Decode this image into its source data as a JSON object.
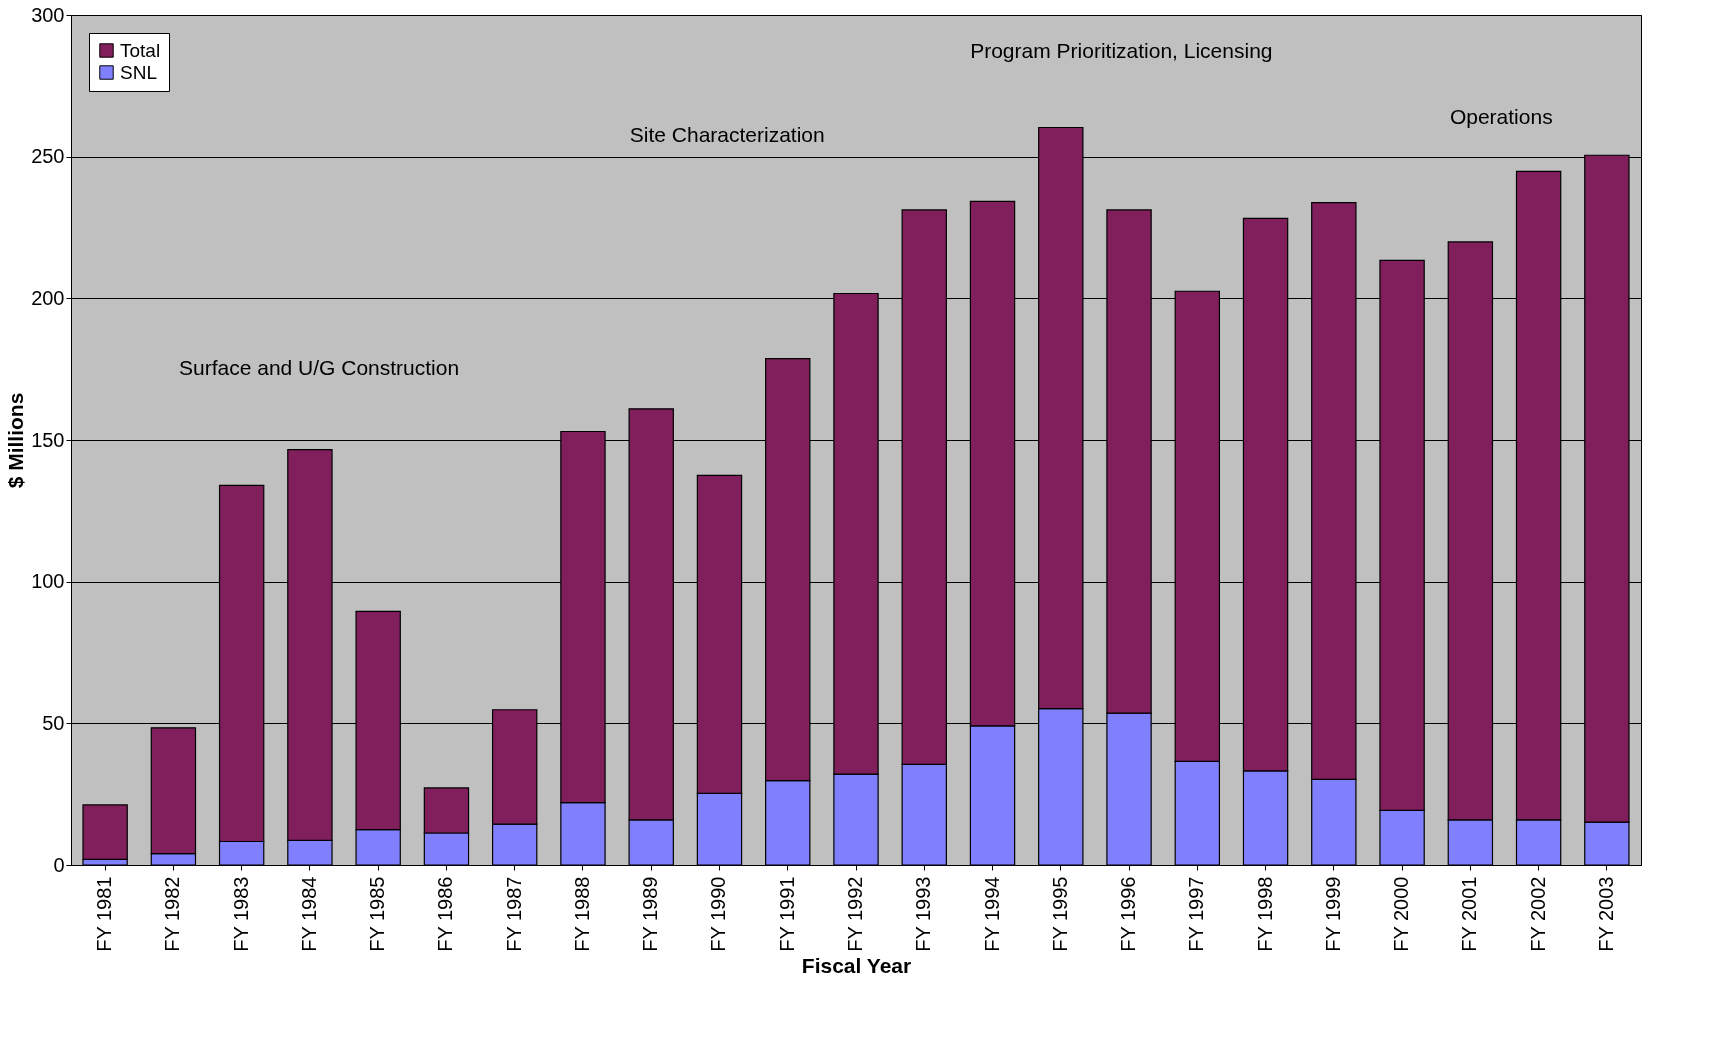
{
  "chart_data": {
    "type": "bar",
    "stacked": true,
    "xlabel": "Fiscal Year",
    "ylabel": "$ Millions",
    "categories": [
      "FY 1981",
      "FY 1982",
      "FY 1983",
      "FY 1984",
      "FY 1985",
      "FY 1986",
      "FY 1987",
      "FY 1988",
      "FY 1989",
      "FY 1990",
      "FY 1991",
      "FY 1992",
      "FY 1993",
      "FY 1994",
      "FY 1995",
      "FY 1996",
      "FY 1997",
      "FY 1998",
      "FY 1999",
      "FY 2000",
      "FY 2001",
      "FY 2002",
      "FY 2003"
    ],
    "series": [
      {
        "name": "SNL",
        "color": "#8080ff",
        "values": [
          2,
          4,
          8.3,
          8.7,
          12.5,
          11.3,
          14.4,
          22,
          15.9,
          25.3,
          29.8,
          32.1,
          35.5,
          49.1,
          55.2,
          53.6,
          36.6,
          33.2,
          30.2,
          19.3,
          15.9,
          15.9,
          15.1
        ]
      },
      {
        "name": "Total",
        "color": "#801f5c",
        "values": [
          19.2,
          44.4,
          125.7,
          137.9,
          77,
          15.9,
          40.4,
          131,
          145.1,
          112.2,
          148.9,
          169.6,
          195.7,
          185.1,
          205.1,
          177.6,
          165.9,
          195,
          203.6,
          194.1,
          204,
          228.9,
          235.4
        ]
      }
    ],
    "ylim": [
      0,
      300
    ],
    "yticks": [
      0,
      50,
      100,
      150,
      200,
      250,
      300
    ],
    "grid": "y",
    "legend": "top left",
    "annotations": [
      "Surface and U/G Construction",
      "Site Characterization",
      "Program Prioritization, Licensing",
      "Operations"
    ]
  }
}
